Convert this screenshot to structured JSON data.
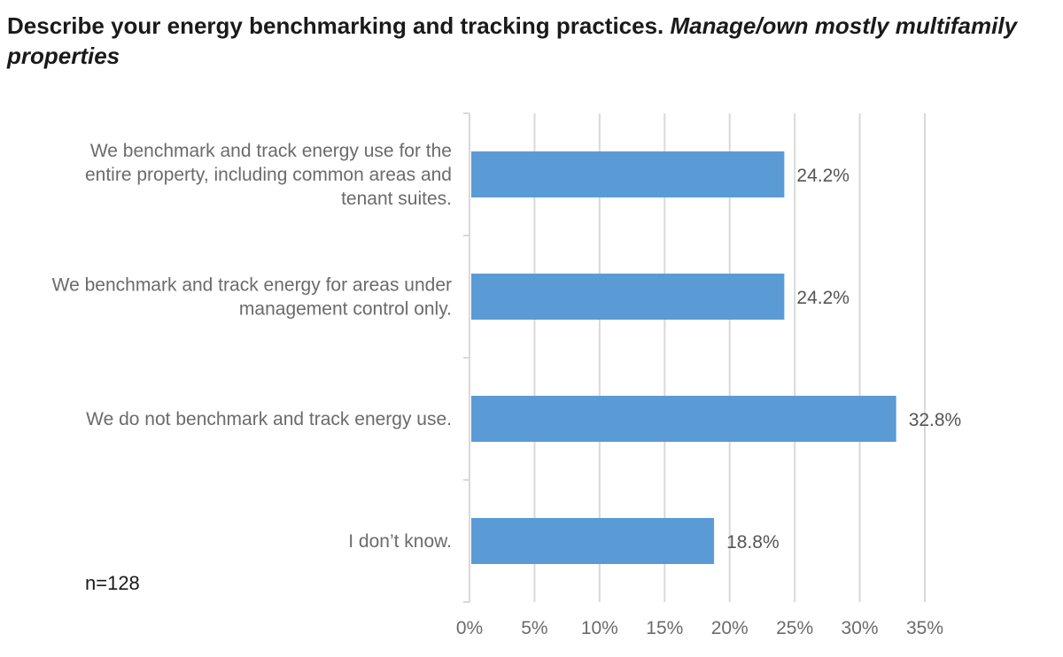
{
  "chart_data": {
    "type": "bar",
    "orientation": "horizontal",
    "title": "Describe your energy benchmarking and tracking practices.",
    "subtitle": "Manage/own mostly multifamily properties",
    "note": "n=128",
    "categories": [
      [
        "We benchmark and track energy use for the",
        "entire property, including common areas and",
        "tenant suites."
      ],
      [
        "We benchmark and track energy for areas under",
        "management control only."
      ],
      [
        "We do not benchmark and track energy use."
      ],
      [
        "I don’t know."
      ]
    ],
    "values": [
      24.2,
      24.2,
      32.8,
      18.8
    ],
    "value_labels": [
      "24.2%",
      "24.2%",
      "32.8%",
      "18.8%"
    ],
    "xlim": [
      0,
      35
    ],
    "xticks": [
      0,
      5,
      10,
      15,
      20,
      25,
      30,
      35
    ],
    "xtick_labels": [
      "0%",
      "5%",
      "10%",
      "15%",
      "20%",
      "25%",
      "30%",
      "35%"
    ],
    "grid": true,
    "legend": "none",
    "bar_color": "#5b9bd5"
  }
}
